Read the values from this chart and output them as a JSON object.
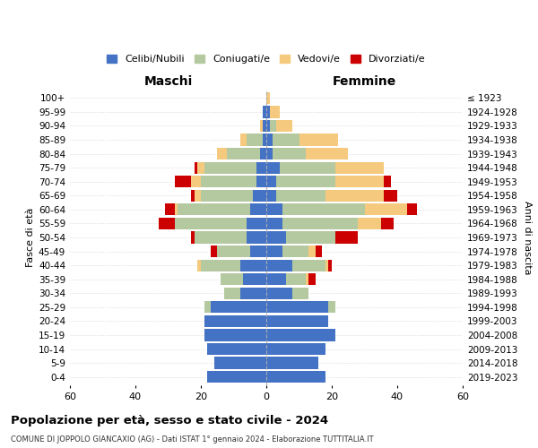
{
  "age_groups": [
    "0-4",
    "5-9",
    "10-14",
    "15-19",
    "20-24",
    "25-29",
    "30-34",
    "35-39",
    "40-44",
    "45-49",
    "50-54",
    "55-59",
    "60-64",
    "65-69",
    "70-74",
    "75-79",
    "80-84",
    "85-89",
    "90-94",
    "95-99",
    "100+"
  ],
  "birth_years": [
    "2019-2023",
    "2014-2018",
    "2009-2013",
    "2004-2008",
    "1999-2003",
    "1994-1998",
    "1989-1993",
    "1984-1988",
    "1979-1983",
    "1974-1978",
    "1969-1973",
    "1964-1968",
    "1959-1963",
    "1954-1958",
    "1949-1953",
    "1944-1948",
    "1939-1943",
    "1934-1938",
    "1929-1933",
    "1924-1928",
    "≤ 1923"
  ],
  "male_celibi": [
    18,
    16,
    18,
    19,
    19,
    17,
    8,
    7,
    8,
    5,
    6,
    6,
    5,
    4,
    3,
    3,
    2,
    1,
    1,
    1,
    0
  ],
  "male_coniugati": [
    0,
    0,
    0,
    0,
    0,
    2,
    5,
    7,
    12,
    10,
    16,
    22,
    22,
    16,
    17,
    16,
    10,
    5,
    0,
    0,
    0
  ],
  "male_vedovi": [
    0,
    0,
    0,
    0,
    0,
    0,
    0,
    0,
    1,
    0,
    0,
    0,
    1,
    2,
    3,
    2,
    3,
    2,
    1,
    0,
    0
  ],
  "male_divorziati": [
    0,
    0,
    0,
    0,
    0,
    0,
    0,
    0,
    0,
    2,
    1,
    5,
    3,
    1,
    5,
    1,
    0,
    0,
    0,
    0,
    0
  ],
  "female_celibi": [
    18,
    16,
    18,
    21,
    19,
    19,
    8,
    6,
    8,
    5,
    6,
    5,
    5,
    3,
    3,
    4,
    2,
    2,
    1,
    1,
    0
  ],
  "female_coniugati": [
    0,
    0,
    0,
    0,
    0,
    2,
    5,
    6,
    10,
    8,
    15,
    23,
    25,
    15,
    18,
    17,
    10,
    8,
    2,
    0,
    0
  ],
  "female_vedovi": [
    0,
    0,
    0,
    0,
    0,
    0,
    0,
    1,
    1,
    2,
    0,
    7,
    13,
    18,
    15,
    15,
    13,
    12,
    5,
    3,
    1
  ],
  "female_divorziati": [
    0,
    0,
    0,
    0,
    0,
    0,
    0,
    2,
    1,
    2,
    7,
    4,
    3,
    4,
    2,
    0,
    0,
    0,
    0,
    0,
    0
  ],
  "colors": {
    "celibi": "#4472c4",
    "coniugati": "#b5c9a0",
    "vedovi": "#f5c97e",
    "divorziati": "#cc0000"
  },
  "xlim": 60,
  "title": "Popolazione per età, sesso e stato civile - 2024",
  "subtitle": "COMUNE DI JOPPOLO GIANCAXIO (AG) - Dati ISTAT 1° gennaio 2024 - Elaborazione TUTTITALIA.IT",
  "ylabel_left": "Fasce di età",
  "ylabel_right": "Anni di nascita",
  "xlabel_left": "Maschi",
  "xlabel_right": "Femmine",
  "legend_labels": [
    "Celibi/Nubili",
    "Coniugati/e",
    "Vedovi/e",
    "Divorziati/e"
  ]
}
